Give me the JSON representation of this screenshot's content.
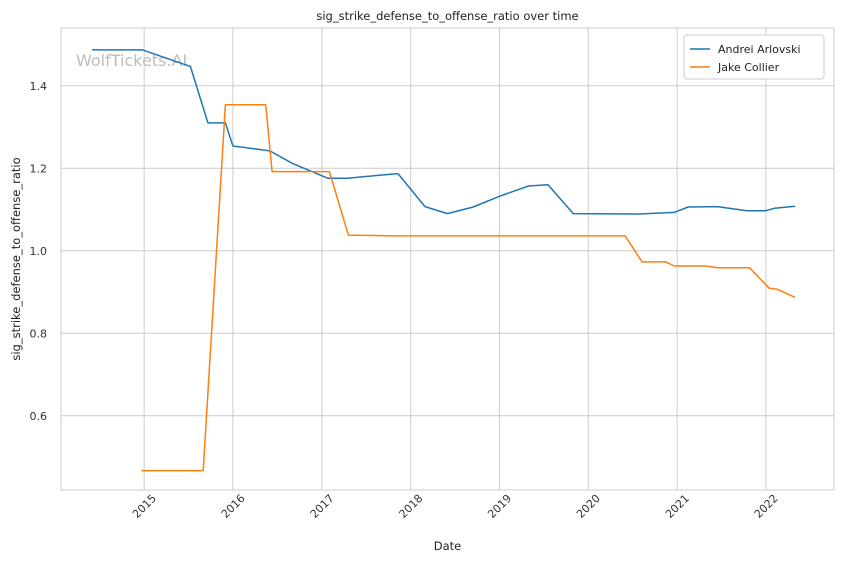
{
  "chart_data": {
    "type": "line",
    "title": "sig_strike_defense_to_offense_ratio over time",
    "xlabel": "Date",
    "ylabel": "sig_strike_defense_to_offense_ratio",
    "watermark": "WolfTickets.AI",
    "x_ticks": [
      "2015",
      "2016",
      "2017",
      "2018",
      "2019",
      "2020",
      "2021",
      "2022"
    ],
    "y_ticks": [
      "0.6",
      "0.8",
      "1.0",
      "1.2",
      "1.4"
    ],
    "xlim": [
      "2014-01-24",
      "2022-10-08"
    ],
    "ylim": [
      0.42,
      1.54
    ],
    "grid": true,
    "legend_position": "top-right",
    "colors": {
      "Andrei Arlovski": "#1f77b4",
      "Jake Collier": "#ff7f0e",
      "grid": "#cccccc",
      "spine": "#cccccc"
    },
    "series": [
      {
        "name": "Andrei Arlovski",
        "points": [
          [
            "2014-06-01",
            1.487
          ],
          [
            "2014-12-25",
            1.487
          ],
          [
            "2015-07-10",
            1.447
          ],
          [
            "2015-09-20",
            1.31
          ],
          [
            "2015-12-01",
            1.31
          ],
          [
            "2016-01-01",
            1.254
          ],
          [
            "2016-06-01",
            1.242
          ],
          [
            "2016-09-01",
            1.212
          ],
          [
            "2017-01-25",
            1.176
          ],
          [
            "2017-04-15",
            1.176
          ],
          [
            "2017-11-10",
            1.187
          ],
          [
            "2018-03-01",
            1.107
          ],
          [
            "2018-06-01",
            1.09
          ],
          [
            "2018-09-15",
            1.106
          ],
          [
            "2019-01-01",
            1.132
          ],
          [
            "2019-05-01",
            1.157
          ],
          [
            "2019-07-20",
            1.16
          ],
          [
            "2019-11-01",
            1.09
          ],
          [
            "2020-08-01",
            1.089
          ],
          [
            "2020-11-15",
            1.092
          ],
          [
            "2020-12-20",
            1.093
          ],
          [
            "2021-02-15",
            1.106
          ],
          [
            "2021-06-15",
            1.107
          ],
          [
            "2021-10-15",
            1.097
          ],
          [
            "2022-01-01",
            1.097
          ],
          [
            "2022-02-05",
            1.103
          ],
          [
            "2022-05-01",
            1.108
          ]
        ]
      },
      {
        "name": "Jake Collier",
        "points": [
          [
            "2014-12-20",
            0.467
          ],
          [
            "2015-09-01",
            0.467
          ],
          [
            "2015-12-01",
            1.354
          ],
          [
            "2016-05-15",
            1.354
          ],
          [
            "2016-06-10",
            1.192
          ],
          [
            "2017-02-01",
            1.192
          ],
          [
            "2017-04-20",
            1.038
          ],
          [
            "2017-11-01",
            1.036
          ],
          [
            "2020-06-01",
            1.036
          ],
          [
            "2020-08-10",
            0.973
          ],
          [
            "2020-11-15",
            0.973
          ],
          [
            "2020-12-20",
            0.963
          ],
          [
            "2021-05-01",
            0.963
          ],
          [
            "2021-06-15",
            0.959
          ],
          [
            "2021-10-25",
            0.959
          ],
          [
            "2022-01-15",
            0.909
          ],
          [
            "2022-02-15",
            0.907
          ],
          [
            "2022-05-01",
            0.887
          ]
        ]
      }
    ]
  }
}
